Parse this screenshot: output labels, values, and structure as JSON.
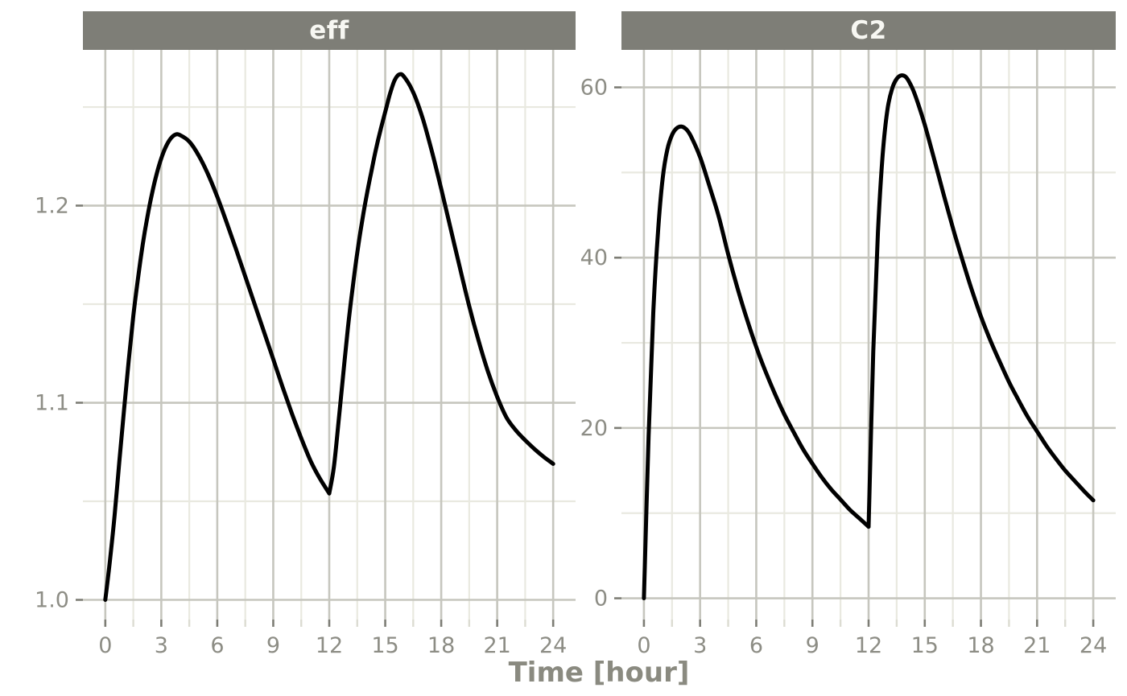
{
  "figure": {
    "xlabel": "Time [hour]"
  },
  "colors": {
    "background": "#ffffff",
    "line": "#000000",
    "strip_fill": "#7e7e77",
    "strip_text": "#f7f7f2",
    "grid_major": "#c6c6be",
    "grid_minor": "#e9e9e0",
    "tick_major": "#7d7d75",
    "tick_minor": "#dcdcd2",
    "axis_text": "#8d8d85",
    "axis_title": "#8a8a80"
  },
  "chart_data": [
    {
      "type": "line",
      "title": "eff",
      "xlabel": "Time [hour]",
      "xlim": [
        -1.2,
        25.2
      ],
      "ylim": [
        0.99,
        1.279
      ],
      "grid": true,
      "legend": false,
      "x_major_ticks": [
        0,
        3,
        6,
        9,
        12,
        15,
        18,
        21,
        24
      ],
      "x_tick_labels": [
        "0",
        "3",
        "6",
        "9",
        "12",
        "15",
        "18",
        "21",
        "24"
      ],
      "x_minor_ticks": [
        1.5,
        4.5,
        7.5,
        10.5,
        13.5,
        16.5,
        19.5,
        22.5
      ],
      "y_major_ticks": [
        1.0,
        1.1,
        1.2
      ],
      "y_tick_labels": [
        "1.0",
        "1.1",
        "1.2"
      ],
      "y_minor_ticks": [
        1.05,
        1.15,
        1.25
      ],
      "series": [
        {
          "name": "eff",
          "segments": [
            [
              [
                0,
                1.0
              ],
              [
                0.25,
                1.02
              ],
              [
                0.5,
                1.043
              ],
              [
                0.75,
                1.07
              ],
              [
                1,
                1.096
              ],
              [
                1.25,
                1.121
              ],
              [
                1.5,
                1.144
              ],
              [
                1.75,
                1.163
              ],
              [
                2,
                1.18
              ],
              [
                2.25,
                1.194
              ],
              [
                2.5,
                1.206
              ],
              [
                2.75,
                1.216
              ],
              [
                3,
                1.224
              ],
              [
                3.25,
                1.23
              ],
              [
                3.5,
                1.234
              ],
              [
                3.75,
                1.236
              ],
              [
                4,
                1.2358
              ],
              [
                4.5,
                1.2325
              ],
              [
                5,
                1.2255
              ],
              [
                5.5,
                1.216
              ],
              [
                6,
                1.2045
              ],
              [
                6.5,
                1.1915
              ],
              [
                7,
                1.178
              ],
              [
                7.5,
                1.164
              ],
              [
                8,
                1.15
              ],
              [
                8.5,
                1.136
              ],
              [
                9,
                1.122
              ],
              [
                9.5,
                1.108
              ],
              [
                10,
                1.0945
              ],
              [
                10.5,
                1.082
              ],
              [
                11,
                1.0705
              ],
              [
                11.5,
                1.0615
              ],
              [
                12,
                1.054
              ]
            ],
            [
              [
                12,
                1.054
              ],
              [
                12.25,
                1.0675
              ],
              [
                12.5,
                1.0905
              ],
              [
                12.75,
                1.1145
              ],
              [
                13,
                1.138
              ],
              [
                13.25,
                1.158
              ],
              [
                13.5,
                1.176
              ],
              [
                13.75,
                1.1915
              ],
              [
                14,
                1.205
              ],
              [
                14.25,
                1.217
              ],
              [
                14.5,
                1.2285
              ],
              [
                14.75,
                1.2385
              ],
              [
                15,
                1.2475
              ],
              [
                15.25,
                1.2565
              ],
              [
                15.5,
                1.2635
              ],
              [
                15.75,
                1.2665
              ],
              [
                16,
                1.2655
              ],
              [
                16.5,
                1.2575
              ],
              [
                17,
                1.2445
              ],
              [
                17.5,
                1.2275
              ],
              [
                18,
                1.2085
              ],
              [
                18.5,
                1.1885
              ],
              [
                19,
                1.1685
              ],
              [
                19.5,
                1.149
              ],
              [
                20,
                1.1315
              ],
              [
                20.5,
                1.116
              ],
              [
                21,
                1.103
              ],
              [
                21.5,
                1.0925
              ],
              [
                22,
                1.086
              ],
              [
                22.5,
                1.081
              ],
              [
                23,
                1.0765
              ],
              [
                23.5,
                1.0725
              ],
              [
                24,
                1.069
              ]
            ]
          ]
        }
      ]
    },
    {
      "type": "line",
      "title": "C2",
      "xlabel": "Time [hour]",
      "xlim": [
        -1.2,
        25.2
      ],
      "ylim": [
        -2.5,
        64.4
      ],
      "grid": true,
      "legend": false,
      "x_major_ticks": [
        0,
        3,
        6,
        9,
        12,
        15,
        18,
        21,
        24
      ],
      "x_tick_labels": [
        "0",
        "3",
        "6",
        "9",
        "12",
        "15",
        "18",
        "21",
        "24"
      ],
      "x_minor_ticks": [
        1.5,
        4.5,
        7.5,
        10.5,
        13.5,
        16.5,
        19.5,
        22.5
      ],
      "y_major_ticks": [
        0,
        20,
        40,
        60
      ],
      "y_tick_labels": [
        "0",
        "20",
        "40",
        "60"
      ],
      "y_minor_ticks": [
        10,
        30,
        50
      ],
      "series": [
        {
          "name": "C2",
          "segments": [
            [
              [
                0,
                0
              ],
              [
                0.25,
                19
              ],
              [
                0.5,
                33.5
              ],
              [
                0.75,
                43
              ],
              [
                1,
                49.3
              ],
              [
                1.25,
                52.7
              ],
              [
                1.5,
                54.4
              ],
              [
                1.75,
                55.2
              ],
              [
                2,
                55.4
              ],
              [
                2.25,
                55.1
              ],
              [
                2.5,
                54.3
              ],
              [
                3,
                51.8
              ],
              [
                3.5,
                48.4
              ],
              [
                4,
                44.8
              ],
              [
                4.5,
                40.4
              ],
              [
                5,
                36.4
              ],
              [
                5.5,
                32.8
              ],
              [
                6,
                29.5
              ],
              [
                6.5,
                26.6
              ],
              [
                7,
                24
              ],
              [
                7.5,
                21.6
              ],
              [
                8,
                19.5
              ],
              [
                8.5,
                17.5
              ],
              [
                9,
                15.8
              ],
              [
                9.5,
                14.2
              ],
              [
                10,
                12.8
              ],
              [
                10.5,
                11.6
              ],
              [
                11,
                10.4
              ],
              [
                11.5,
                9.4
              ],
              [
                12,
                8.4
              ]
            ],
            [
              [
                12,
                8.4
              ],
              [
                12.25,
                29
              ],
              [
                12.5,
                43
              ],
              [
                12.75,
                52
              ],
              [
                13,
                57.3
              ],
              [
                13.25,
                59.8
              ],
              [
                13.5,
                61
              ],
              [
                13.75,
                61.4
              ],
              [
                14,
                61.2
              ],
              [
                14.25,
                60.3
              ],
              [
                14.5,
                59
              ],
              [
                15,
                55.6
              ],
              [
                15.5,
                51.6
              ],
              [
                16,
                47.5
              ],
              [
                16.5,
                43.5
              ],
              [
                17,
                39.8
              ],
              [
                17.5,
                36.3
              ],
              [
                18,
                33.1
              ],
              [
                18.5,
                30.3
              ],
              [
                19,
                27.8
              ],
              [
                19.5,
                25.4
              ],
              [
                20,
                23.3
              ],
              [
                20.5,
                21.3
              ],
              [
                21,
                19.6
              ],
              [
                21.5,
                17.9
              ],
              [
                22,
                16.4
              ],
              [
                22.5,
                15
              ],
              [
                23,
                13.8
              ],
              [
                23.5,
                12.6
              ],
              [
                24,
                11.5
              ]
            ]
          ]
        }
      ]
    }
  ]
}
